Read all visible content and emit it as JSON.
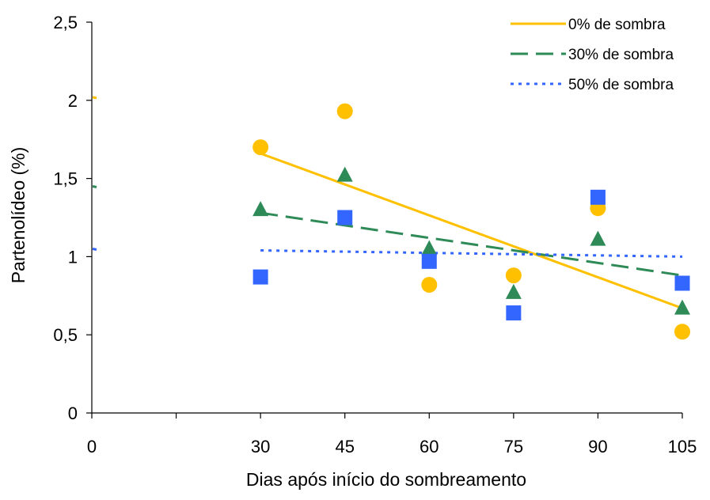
{
  "chart_data": {
    "type": "scatter",
    "xlabel": "Dias após início do sombreamento",
    "ylabel": "Partenolídeo (%)",
    "xlim": [
      0,
      105
    ],
    "ylim": [
      0,
      2.5
    ],
    "x_ticks": [
      0,
      30,
      45,
      60,
      75,
      90,
      105
    ],
    "x_tick_labels": [
      "0",
      "30",
      "45",
      "60",
      "75",
      "90",
      "105"
    ],
    "y_ticks": [
      0,
      0.5,
      1,
      1.5,
      2,
      2.5
    ],
    "y_tick_labels": [
      "0",
      "0,5",
      "1",
      "1,5",
      "2",
      "2,5"
    ],
    "legend_position": "top-right",
    "series": [
      {
        "name": "0% de sombra",
        "marker": "circle",
        "color": "#FFC000",
        "line_style": "solid",
        "x": [
          30,
          45,
          60,
          75,
          90,
          105
        ],
        "y": [
          1.7,
          1.93,
          0.82,
          0.88,
          1.31,
          0.52
        ],
        "trend": {
          "x": [
            30,
            105
          ],
          "y": [
            1.66,
            0.67
          ],
          "y_intercept": 2.02
        }
      },
      {
        "name": "30% de sombra",
        "marker": "triangle",
        "color": "#2E8B57",
        "line_style": "dashed",
        "x": [
          30,
          45,
          60,
          75,
          90,
          105
        ],
        "y": [
          1.3,
          1.52,
          1.05,
          0.77,
          1.11,
          0.67
        ],
        "trend": {
          "x": [
            30,
            105
          ],
          "y": [
            1.28,
            0.88
          ],
          "y_intercept": 1.45
        }
      },
      {
        "name": "50% de sombra",
        "marker": "square",
        "color": "#3366FF",
        "line_style": "dotted",
        "x": [
          30,
          45,
          60,
          75,
          90,
          105
        ],
        "y": [
          0.87,
          1.25,
          0.97,
          0.64,
          1.38,
          0.83
        ],
        "trend": {
          "x": [
            30,
            105
          ],
          "y": [
            1.04,
            1.0
          ],
          "y_intercept": 1.05
        }
      }
    ]
  }
}
